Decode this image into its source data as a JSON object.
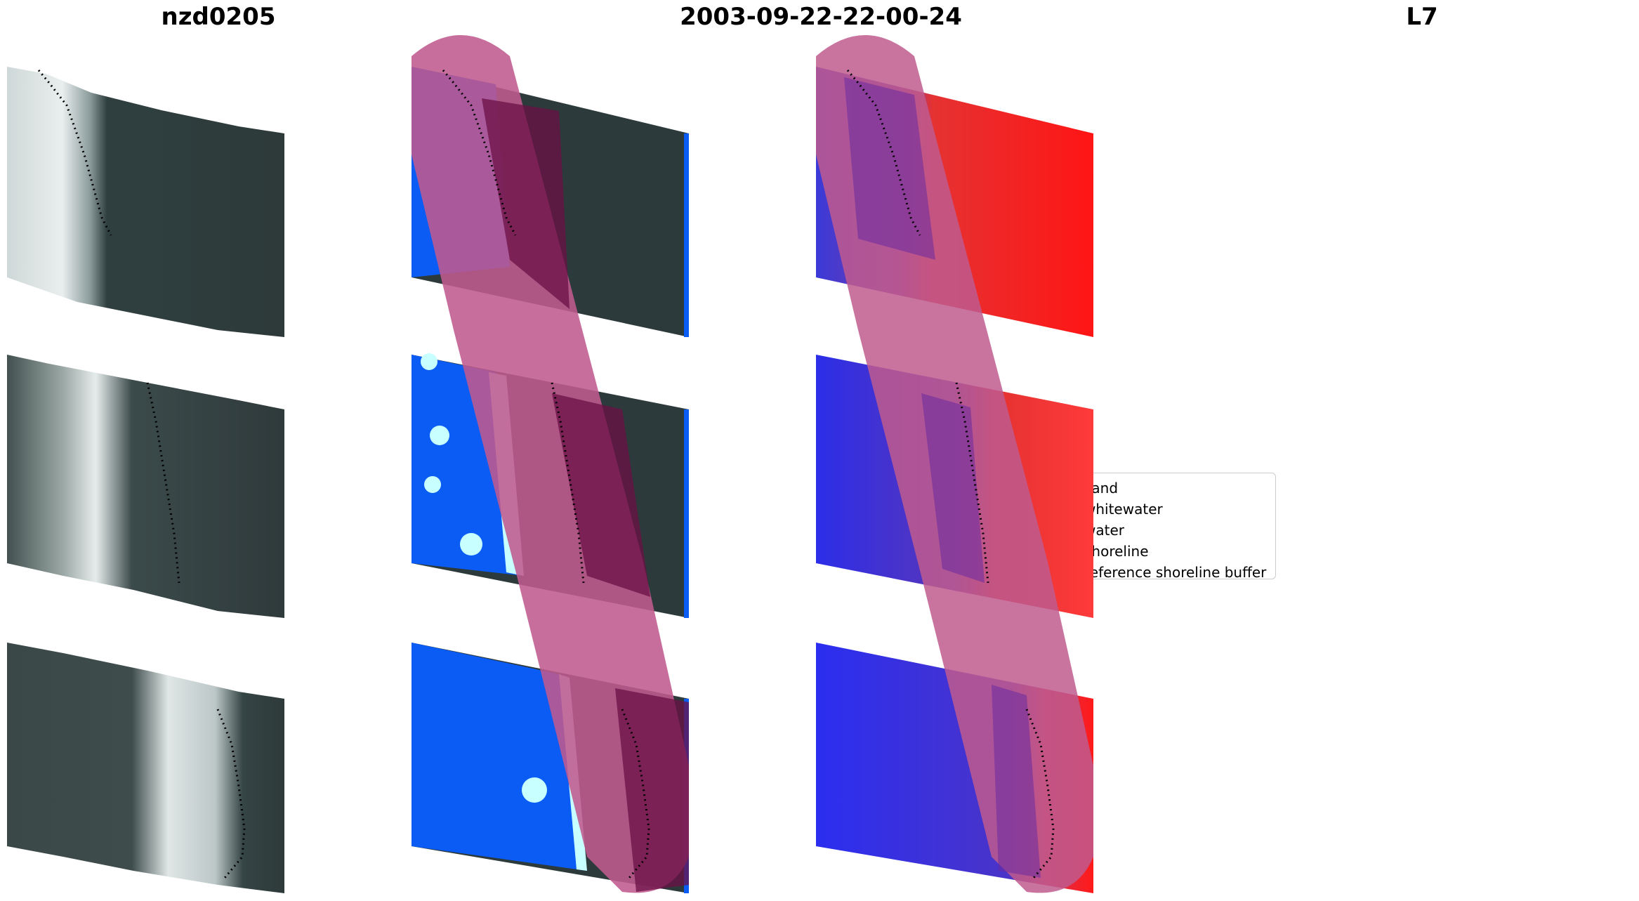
{
  "panels": [
    {
      "title": "nzd0205"
    },
    {
      "title": "2003-09-22-22-00-24"
    },
    {
      "title": "L7"
    }
  ],
  "legend": {
    "items": [
      {
        "label": "sand",
        "color": "#ff8c35",
        "kind": "patch"
      },
      {
        "label": "whitewater",
        "color": "#c8ffff",
        "kind": "patch"
      },
      {
        "label": "water",
        "color": "#0066ff",
        "kind": "patch"
      },
      {
        "label": "shoreline",
        "color": "#000000",
        "kind": "line"
      },
      {
        "label": "reference shoreline buffer",
        "color": "#8b2a2f",
        "kind": "patch"
      }
    ]
  },
  "colors": {
    "ocean_dark": "#2c3a3b",
    "surf_white": "#dfe6e6",
    "classified_water": "#0a5cf5",
    "buffer_pink": "#c05a8e",
    "index_red": "#ff1b1b",
    "index_blue": "#2a2ee8"
  }
}
